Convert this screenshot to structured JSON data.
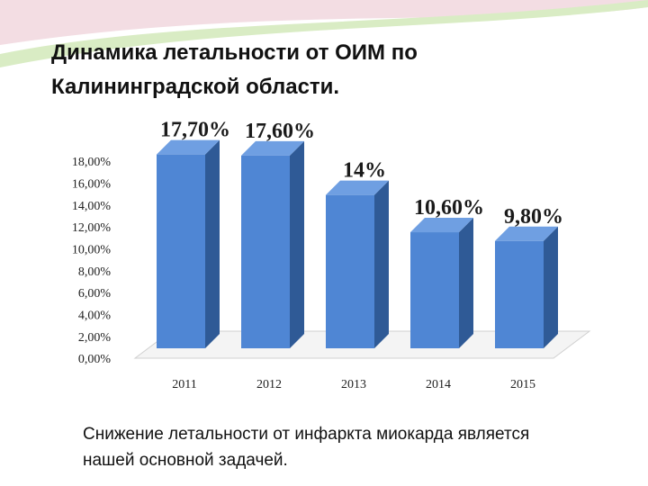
{
  "chart_data": {
    "type": "bar",
    "title": "Динамика летальности от ОИМ по Калининградской области.",
    "categories": [
      "2011",
      "2012",
      "2013",
      "2014",
      "2015"
    ],
    "values": [
      17.7,
      17.6,
      14,
      10.6,
      9.8
    ],
    "value_labels": [
      "17,70%",
      "17,60%",
      "14%",
      "10,60%",
      "9,80%"
    ],
    "color": "#4f86d4",
    "ylim": [
      0,
      18
    ],
    "yticks": [
      {
        "value": 0,
        "label": "0,00%"
      },
      {
        "value": 2,
        "label": "2,00%"
      },
      {
        "value": 4,
        "label": "4,00%"
      },
      {
        "value": 6,
        "label": "6,00%"
      },
      {
        "value": 8,
        "label": "8,00%"
      },
      {
        "value": 10,
        "label": "10,00%"
      },
      {
        "value": 12,
        "label": "12,00%"
      },
      {
        "value": 14,
        "label": "14,00%"
      },
      {
        "value": 16,
        "label": "16,00%"
      },
      {
        "value": 18,
        "label": "18,00%"
      }
    ]
  },
  "caption": "Снижение летальности от инфаркта миокарда является нашей основной задачей."
}
